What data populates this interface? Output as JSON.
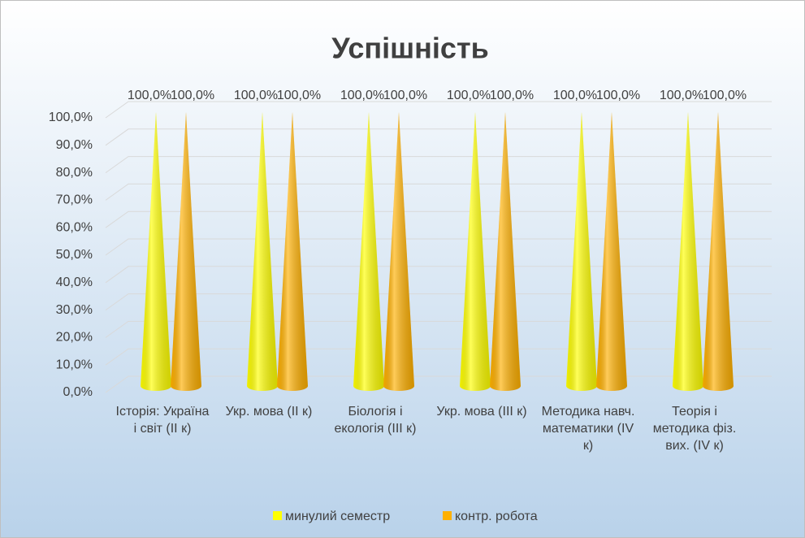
{
  "chart_data": {
    "type": "cone",
    "title": "Успішність",
    "categories": [
      "Історія: Україна і світ (ІІ к)",
      "Укр. мова (ІІ к)",
      "Біологія і екологія (ІІІ к)",
      "Укр. мова (ІІІ к)",
      "Методика навч. математики (IV к)",
      "Теорія і методика фіз. вих. (IV к)"
    ],
    "series": [
      {
        "name": "минулий семестр",
        "color": "#ffff00",
        "values": [
          100,
          100,
          100,
          100,
          100,
          100
        ],
        "value_labels": [
          "100,0%",
          "100,0%",
          "100,0%",
          "100,0%",
          "100,0%",
          "100,0%"
        ]
      },
      {
        "name": "контр. робота",
        "color": "#ffb000",
        "values": [
          100,
          100,
          100,
          100,
          100,
          100
        ],
        "value_labels": [
          "100,0%",
          "100,0%",
          "100,0%",
          "100,0%",
          "100,0%",
          "100,0%"
        ]
      }
    ],
    "ylim": [
      0,
      100
    ],
    "yticks": [
      {
        "value": 0,
        "label": "0,0%"
      },
      {
        "value": 10,
        "label": "10,0%"
      },
      {
        "value": 20,
        "label": "20,0%"
      },
      {
        "value": 30,
        "label": "30,0%"
      },
      {
        "value": 40,
        "label": "40,0%"
      },
      {
        "value": 50,
        "label": "50,0%"
      },
      {
        "value": 60,
        "label": "60,0%"
      },
      {
        "value": 70,
        "label": "70,0%"
      },
      {
        "value": 80,
        "label": "80,0%"
      },
      {
        "value": 90,
        "label": "90,0%"
      },
      {
        "value": 100,
        "label": "100,0%"
      }
    ],
    "grid": true,
    "legend": "bottom"
  }
}
